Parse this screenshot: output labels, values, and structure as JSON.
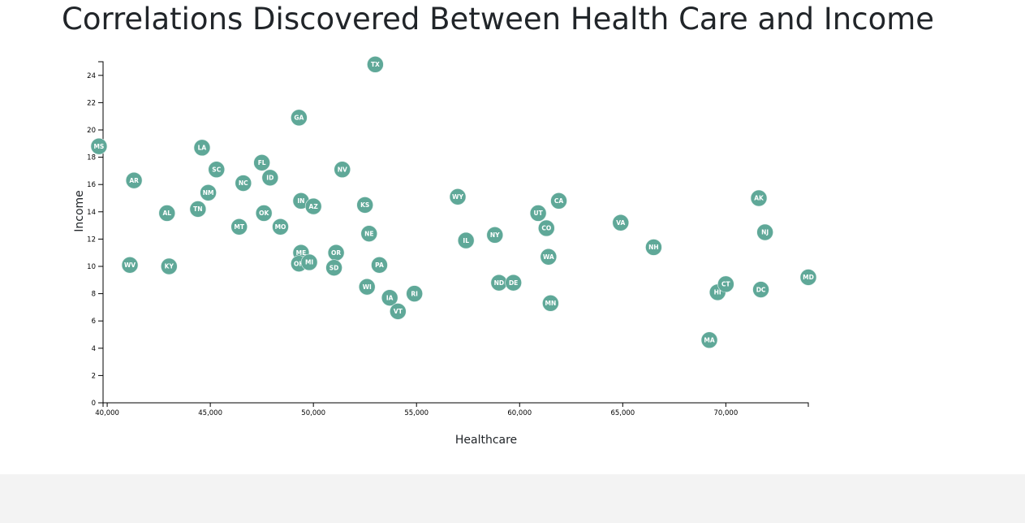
{
  "page": {
    "title": "Correlations Discovered Between Health Care and Income"
  },
  "colors": {
    "marker": "#5fa898",
    "marker_label": "#ffffff",
    "footer": "#f3f3f3"
  },
  "chart_data": {
    "type": "scatter",
    "xlabel": "Healthcare",
    "ylabel": "Income",
    "xlim": [
      39800,
      74000
    ],
    "ylim": [
      0,
      25
    ],
    "grid": false,
    "x_ticks": [
      40000,
      45000,
      50000,
      55000,
      60000,
      65000,
      70000
    ],
    "x_tick_labels": [
      "40,000",
      "45,000",
      "50,000",
      "55,000",
      "60,000",
      "65,000",
      "70,000"
    ],
    "y_ticks": [
      0,
      2,
      4,
      6,
      8,
      10,
      12,
      14,
      16,
      18,
      20,
      22,
      24
    ],
    "y_tick_labels": [
      "0",
      "2",
      "4",
      "6",
      "8",
      "10",
      "12",
      "14",
      "16",
      "18",
      "20",
      "22",
      "24"
    ],
    "points": [
      {
        "label": "MS",
        "x": 39600,
        "y": 18.8
      },
      {
        "label": "AR",
        "x": 41300,
        "y": 16.3
      },
      {
        "label": "WV",
        "x": 41100,
        "y": 10.1
      },
      {
        "label": "KY",
        "x": 43000,
        "y": 10.0
      },
      {
        "label": "AL",
        "x": 42900,
        "y": 13.9
      },
      {
        "label": "TN",
        "x": 44400,
        "y": 14.2
      },
      {
        "label": "LA",
        "x": 44600,
        "y": 18.7
      },
      {
        "label": "NM",
        "x": 44900,
        "y": 15.4
      },
      {
        "label": "SC",
        "x": 45300,
        "y": 17.1
      },
      {
        "label": "NC",
        "x": 46600,
        "y": 16.1
      },
      {
        "label": "MT",
        "x": 46400,
        "y": 12.9
      },
      {
        "label": "FL",
        "x": 47500,
        "y": 17.6
      },
      {
        "label": "ID",
        "x": 47900,
        "y": 16.5
      },
      {
        "label": "OK",
        "x": 47600,
        "y": 13.9
      },
      {
        "label": "MO",
        "x": 48400,
        "y": 12.9
      },
      {
        "label": "GA",
        "x": 49300,
        "y": 20.9
      },
      {
        "label": "IN",
        "x": 49400,
        "y": 14.8
      },
      {
        "label": "AZ",
        "x": 50000,
        "y": 14.4
      },
      {
        "label": "ME",
        "x": 49400,
        "y": 11.0
      },
      {
        "label": "OH",
        "x": 49300,
        "y": 10.2
      },
      {
        "label": "MI",
        "x": 49800,
        "y": 10.3
      },
      {
        "label": "NV",
        "x": 51400,
        "y": 17.1
      },
      {
        "label": "OR",
        "x": 51100,
        "y": 11.0
      },
      {
        "label": "SD",
        "x": 51000,
        "y": 9.9
      },
      {
        "label": "TX",
        "x": 53000,
        "y": 24.8
      },
      {
        "label": "KS",
        "x": 52500,
        "y": 14.5
      },
      {
        "label": "NE",
        "x": 52700,
        "y": 12.4
      },
      {
        "label": "PA",
        "x": 53200,
        "y": 10.1
      },
      {
        "label": "WI",
        "x": 52600,
        "y": 8.5
      },
      {
        "label": "IA",
        "x": 53700,
        "y": 7.7
      },
      {
        "label": "RI",
        "x": 54900,
        "y": 8.0
      },
      {
        "label": "VT",
        "x": 54100,
        "y": 6.7
      },
      {
        "label": "WY",
        "x": 57000,
        "y": 15.1
      },
      {
        "label": "IL",
        "x": 57400,
        "y": 11.9
      },
      {
        "label": "NY",
        "x": 58800,
        "y": 12.3
      },
      {
        "label": "ND",
        "x": 59000,
        "y": 8.8
      },
      {
        "label": "DE",
        "x": 59700,
        "y": 8.8
      },
      {
        "label": "UT",
        "x": 60900,
        "y": 13.9
      },
      {
        "label": "CA",
        "x": 61900,
        "y": 14.8
      },
      {
        "label": "CO",
        "x": 61300,
        "y": 12.8
      },
      {
        "label": "WA",
        "x": 61400,
        "y": 10.7
      },
      {
        "label": "MN",
        "x": 61500,
        "y": 7.3
      },
      {
        "label": "VA",
        "x": 64900,
        "y": 13.2
      },
      {
        "label": "NH",
        "x": 66500,
        "y": 11.4
      },
      {
        "label": "MA",
        "x": 69200,
        "y": 4.6
      },
      {
        "label": "HI",
        "x": 69600,
        "y": 8.1
      },
      {
        "label": "CT",
        "x": 70000,
        "y": 8.7
      },
      {
        "label": "AK",
        "x": 71600,
        "y": 15.0
      },
      {
        "label": "NJ",
        "x": 71900,
        "y": 12.5
      },
      {
        "label": "DC",
        "x": 71700,
        "y": 8.3
      },
      {
        "label": "MD",
        "x": 74000,
        "y": 9.2
      }
    ]
  }
}
